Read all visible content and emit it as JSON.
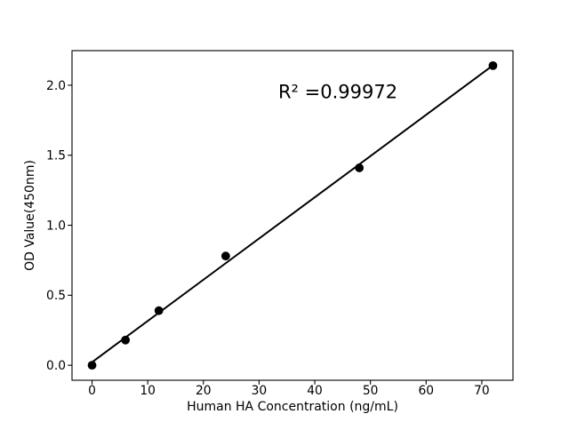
{
  "chart_data": {
    "type": "scatter",
    "title": "",
    "xlabel": "Human HA Concentration (ng/mL)",
    "ylabel": "OD Value(450nm)",
    "annotation": "R² =0.99972",
    "x": [
      0,
      6,
      12,
      24,
      48,
      72
    ],
    "y": [
      0.0,
      0.18,
      0.39,
      0.78,
      1.41,
      2.14
    ],
    "fit_line": {
      "x": [
        0,
        72
      ],
      "y": [
        0.022,
        2.142
      ]
    },
    "xticks": [
      0,
      10,
      20,
      30,
      40,
      50,
      60,
      70
    ],
    "xtick_labels": [
      "0",
      "10",
      "20",
      "30",
      "40",
      "50",
      "60",
      "70"
    ],
    "yticks": [
      0.0,
      0.5,
      1.0,
      1.5,
      2.0
    ],
    "ytick_labels": [
      "0.0",
      "0.5",
      "1.0",
      "1.5",
      "2.0"
    ],
    "xlim": [
      -3.6,
      75.6
    ],
    "ylim": [
      -0.107,
      2.247
    ],
    "grid": false,
    "legend": false,
    "marker_color": "#000000",
    "line_color": "#000000",
    "axis_color": "#000000",
    "text_color": "#000000",
    "background_color": "#ffffff"
  }
}
